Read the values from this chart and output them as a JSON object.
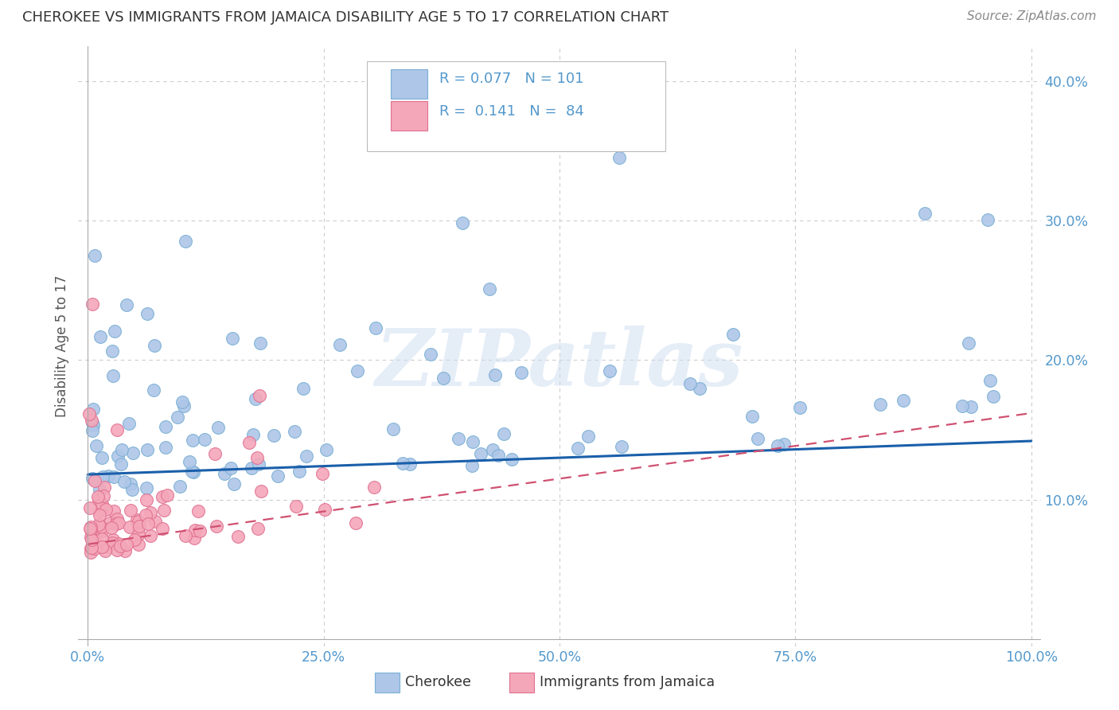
{
  "title": "CHEROKEE VS IMMIGRANTS FROM JAMAICA DISABILITY AGE 5 TO 17 CORRELATION CHART",
  "source": "Source: ZipAtlas.com",
  "ylabel": "Disability Age 5 to 17",
  "watermark": "ZIPatlas",
  "cherokee_color": "#aec6e8",
  "cherokee_edge": "#7aafd4",
  "jamaica_color": "#f4a7b9",
  "jamaica_edge": "#e07090",
  "cherokee_line_color": "#1a5faa",
  "jamaica_line_color": "#d05070",
  "title_color": "#333333",
  "source_color": "#888888",
  "tick_color": "#5599cc",
  "grid_color": "#cccccc",
  "background_color": "#ffffff",
  "xlim": [
    -0.01,
    1.01
  ],
  "ylim": [
    -0.005,
    0.425
  ],
  "legend_R1": "R = 0.077",
  "legend_N1": "N = 101",
  "legend_R2": "R =  0.141",
  "legend_N2": "N =  84"
}
